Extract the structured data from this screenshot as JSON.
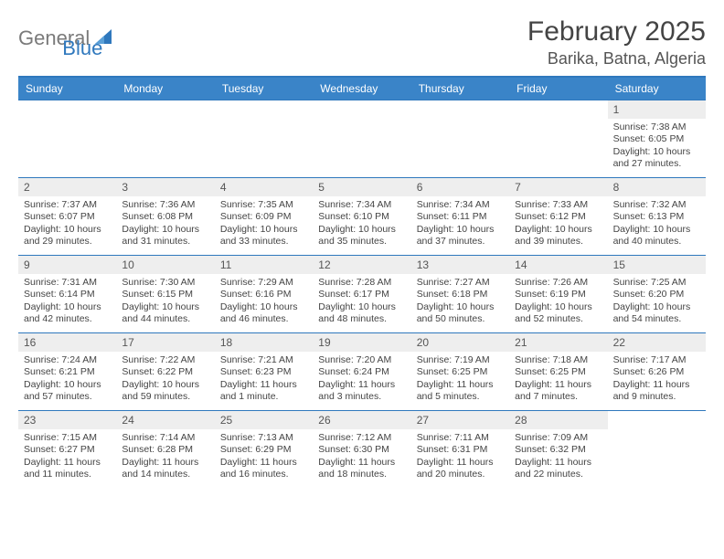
{
  "logo": {
    "general": "General",
    "blue": "Blue"
  },
  "title": "February 2025",
  "location": "Barika, Batna, Algeria",
  "colors": {
    "header_bar": "#3a84c8",
    "border": "#2f78bd",
    "daynum_bg": "#eeeeee",
    "logo_gray": "#7a7a7a",
    "logo_blue": "#2f78bd",
    "text": "#444444",
    "bg": "#ffffff"
  },
  "weekdays": [
    "Sunday",
    "Monday",
    "Tuesday",
    "Wednesday",
    "Thursday",
    "Friday",
    "Saturday"
  ],
  "weeks": [
    [
      null,
      null,
      null,
      null,
      null,
      null,
      {
        "n": "1",
        "sunrise": "7:38 AM",
        "sunset": "6:05 PM",
        "daylight": "10 hours and 27 minutes."
      }
    ],
    [
      {
        "n": "2",
        "sunrise": "7:37 AM",
        "sunset": "6:07 PM",
        "daylight": "10 hours and 29 minutes."
      },
      {
        "n": "3",
        "sunrise": "7:36 AM",
        "sunset": "6:08 PM",
        "daylight": "10 hours and 31 minutes."
      },
      {
        "n": "4",
        "sunrise": "7:35 AM",
        "sunset": "6:09 PM",
        "daylight": "10 hours and 33 minutes."
      },
      {
        "n": "5",
        "sunrise": "7:34 AM",
        "sunset": "6:10 PM",
        "daylight": "10 hours and 35 minutes."
      },
      {
        "n": "6",
        "sunrise": "7:34 AM",
        "sunset": "6:11 PM",
        "daylight": "10 hours and 37 minutes."
      },
      {
        "n": "7",
        "sunrise": "7:33 AM",
        "sunset": "6:12 PM",
        "daylight": "10 hours and 39 minutes."
      },
      {
        "n": "8",
        "sunrise": "7:32 AM",
        "sunset": "6:13 PM",
        "daylight": "10 hours and 40 minutes."
      }
    ],
    [
      {
        "n": "9",
        "sunrise": "7:31 AM",
        "sunset": "6:14 PM",
        "daylight": "10 hours and 42 minutes."
      },
      {
        "n": "10",
        "sunrise": "7:30 AM",
        "sunset": "6:15 PM",
        "daylight": "10 hours and 44 minutes."
      },
      {
        "n": "11",
        "sunrise": "7:29 AM",
        "sunset": "6:16 PM",
        "daylight": "10 hours and 46 minutes."
      },
      {
        "n": "12",
        "sunrise": "7:28 AM",
        "sunset": "6:17 PM",
        "daylight": "10 hours and 48 minutes."
      },
      {
        "n": "13",
        "sunrise": "7:27 AM",
        "sunset": "6:18 PM",
        "daylight": "10 hours and 50 minutes."
      },
      {
        "n": "14",
        "sunrise": "7:26 AM",
        "sunset": "6:19 PM",
        "daylight": "10 hours and 52 minutes."
      },
      {
        "n": "15",
        "sunrise": "7:25 AM",
        "sunset": "6:20 PM",
        "daylight": "10 hours and 54 minutes."
      }
    ],
    [
      {
        "n": "16",
        "sunrise": "7:24 AM",
        "sunset": "6:21 PM",
        "daylight": "10 hours and 57 minutes."
      },
      {
        "n": "17",
        "sunrise": "7:22 AM",
        "sunset": "6:22 PM",
        "daylight": "10 hours and 59 minutes."
      },
      {
        "n": "18",
        "sunrise": "7:21 AM",
        "sunset": "6:23 PM",
        "daylight": "11 hours and 1 minute."
      },
      {
        "n": "19",
        "sunrise": "7:20 AM",
        "sunset": "6:24 PM",
        "daylight": "11 hours and 3 minutes."
      },
      {
        "n": "20",
        "sunrise": "7:19 AM",
        "sunset": "6:25 PM",
        "daylight": "11 hours and 5 minutes."
      },
      {
        "n": "21",
        "sunrise": "7:18 AM",
        "sunset": "6:25 PM",
        "daylight": "11 hours and 7 minutes."
      },
      {
        "n": "22",
        "sunrise": "7:17 AM",
        "sunset": "6:26 PM",
        "daylight": "11 hours and 9 minutes."
      }
    ],
    [
      {
        "n": "23",
        "sunrise": "7:15 AM",
        "sunset": "6:27 PM",
        "daylight": "11 hours and 11 minutes."
      },
      {
        "n": "24",
        "sunrise": "7:14 AM",
        "sunset": "6:28 PM",
        "daylight": "11 hours and 14 minutes."
      },
      {
        "n": "25",
        "sunrise": "7:13 AM",
        "sunset": "6:29 PM",
        "daylight": "11 hours and 16 minutes."
      },
      {
        "n": "26",
        "sunrise": "7:12 AM",
        "sunset": "6:30 PM",
        "daylight": "11 hours and 18 minutes."
      },
      {
        "n": "27",
        "sunrise": "7:11 AM",
        "sunset": "6:31 PM",
        "daylight": "11 hours and 20 minutes."
      },
      {
        "n": "28",
        "sunrise": "7:09 AM",
        "sunset": "6:32 PM",
        "daylight": "11 hours and 22 minutes."
      },
      null
    ]
  ],
  "labels": {
    "sunrise_prefix": "Sunrise: ",
    "sunset_prefix": "Sunset: ",
    "daylight_prefix": "Daylight: "
  }
}
